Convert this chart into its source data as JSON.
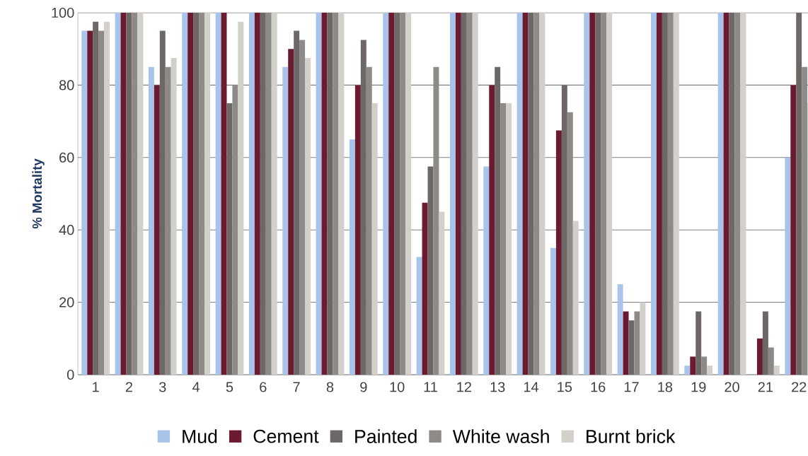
{
  "chart_data": {
    "type": "bar",
    "ylabel": "% Mortality",
    "categories": [
      "1",
      "2",
      "3",
      "4",
      "5",
      "6",
      "7",
      "8",
      "9",
      "10",
      "11",
      "12",
      "13",
      "14",
      "15",
      "16",
      "17",
      "18",
      "19",
      "20",
      "21",
      "22"
    ],
    "series": [
      {
        "name": "Mud",
        "color": "#a9c4eb",
        "values": [
          95,
          100,
          85,
          100,
          100,
          100,
          85,
          100,
          65,
          100,
          32.5,
          100,
          57.5,
          100,
          35,
          100,
          25,
          100,
          2.5,
          100,
          0,
          60
        ]
      },
      {
        "name": "Cement",
        "color": "#6b1a30",
        "values": [
          95,
          100,
          80,
          100,
          100,
          100,
          90,
          100,
          80,
          100,
          47.5,
          100,
          80,
          100,
          67.5,
          100,
          17.5,
          100,
          5,
          100,
          10,
          80
        ]
      },
      {
        "name": "Painted",
        "color": "#6e6767",
        "values": [
          97.5,
          100,
          95,
          100,
          75,
          100,
          95,
          100,
          92.5,
          100,
          57.5,
          100,
          85,
          100,
          80,
          100,
          15,
          100,
          17.5,
          100,
          17.5,
          100
        ]
      },
      {
        "name": "White wash",
        "color": "#8e8a87",
        "values": [
          95,
          100,
          85,
          100,
          80,
          100,
          92.5,
          100,
          85,
          100,
          85,
          100,
          75,
          100,
          72.5,
          100,
          17.5,
          100,
          5,
          100,
          7.5,
          85
        ]
      },
      {
        "name": "Burnt brick",
        "color": "#d3d0cc",
        "values": [
          97.5,
          100,
          87.5,
          100,
          97.5,
          100,
          87.5,
          100,
          75,
          100,
          45,
          100,
          75,
          100,
          42.5,
          100,
          20,
          100,
          2.5,
          100,
          2.5,
          75
        ]
      }
    ],
    "ylim": [
      0,
      100
    ],
    "yticks": [
      0,
      20,
      40,
      60,
      80,
      100
    ],
    "grid": "y",
    "legend": "bottom"
  }
}
